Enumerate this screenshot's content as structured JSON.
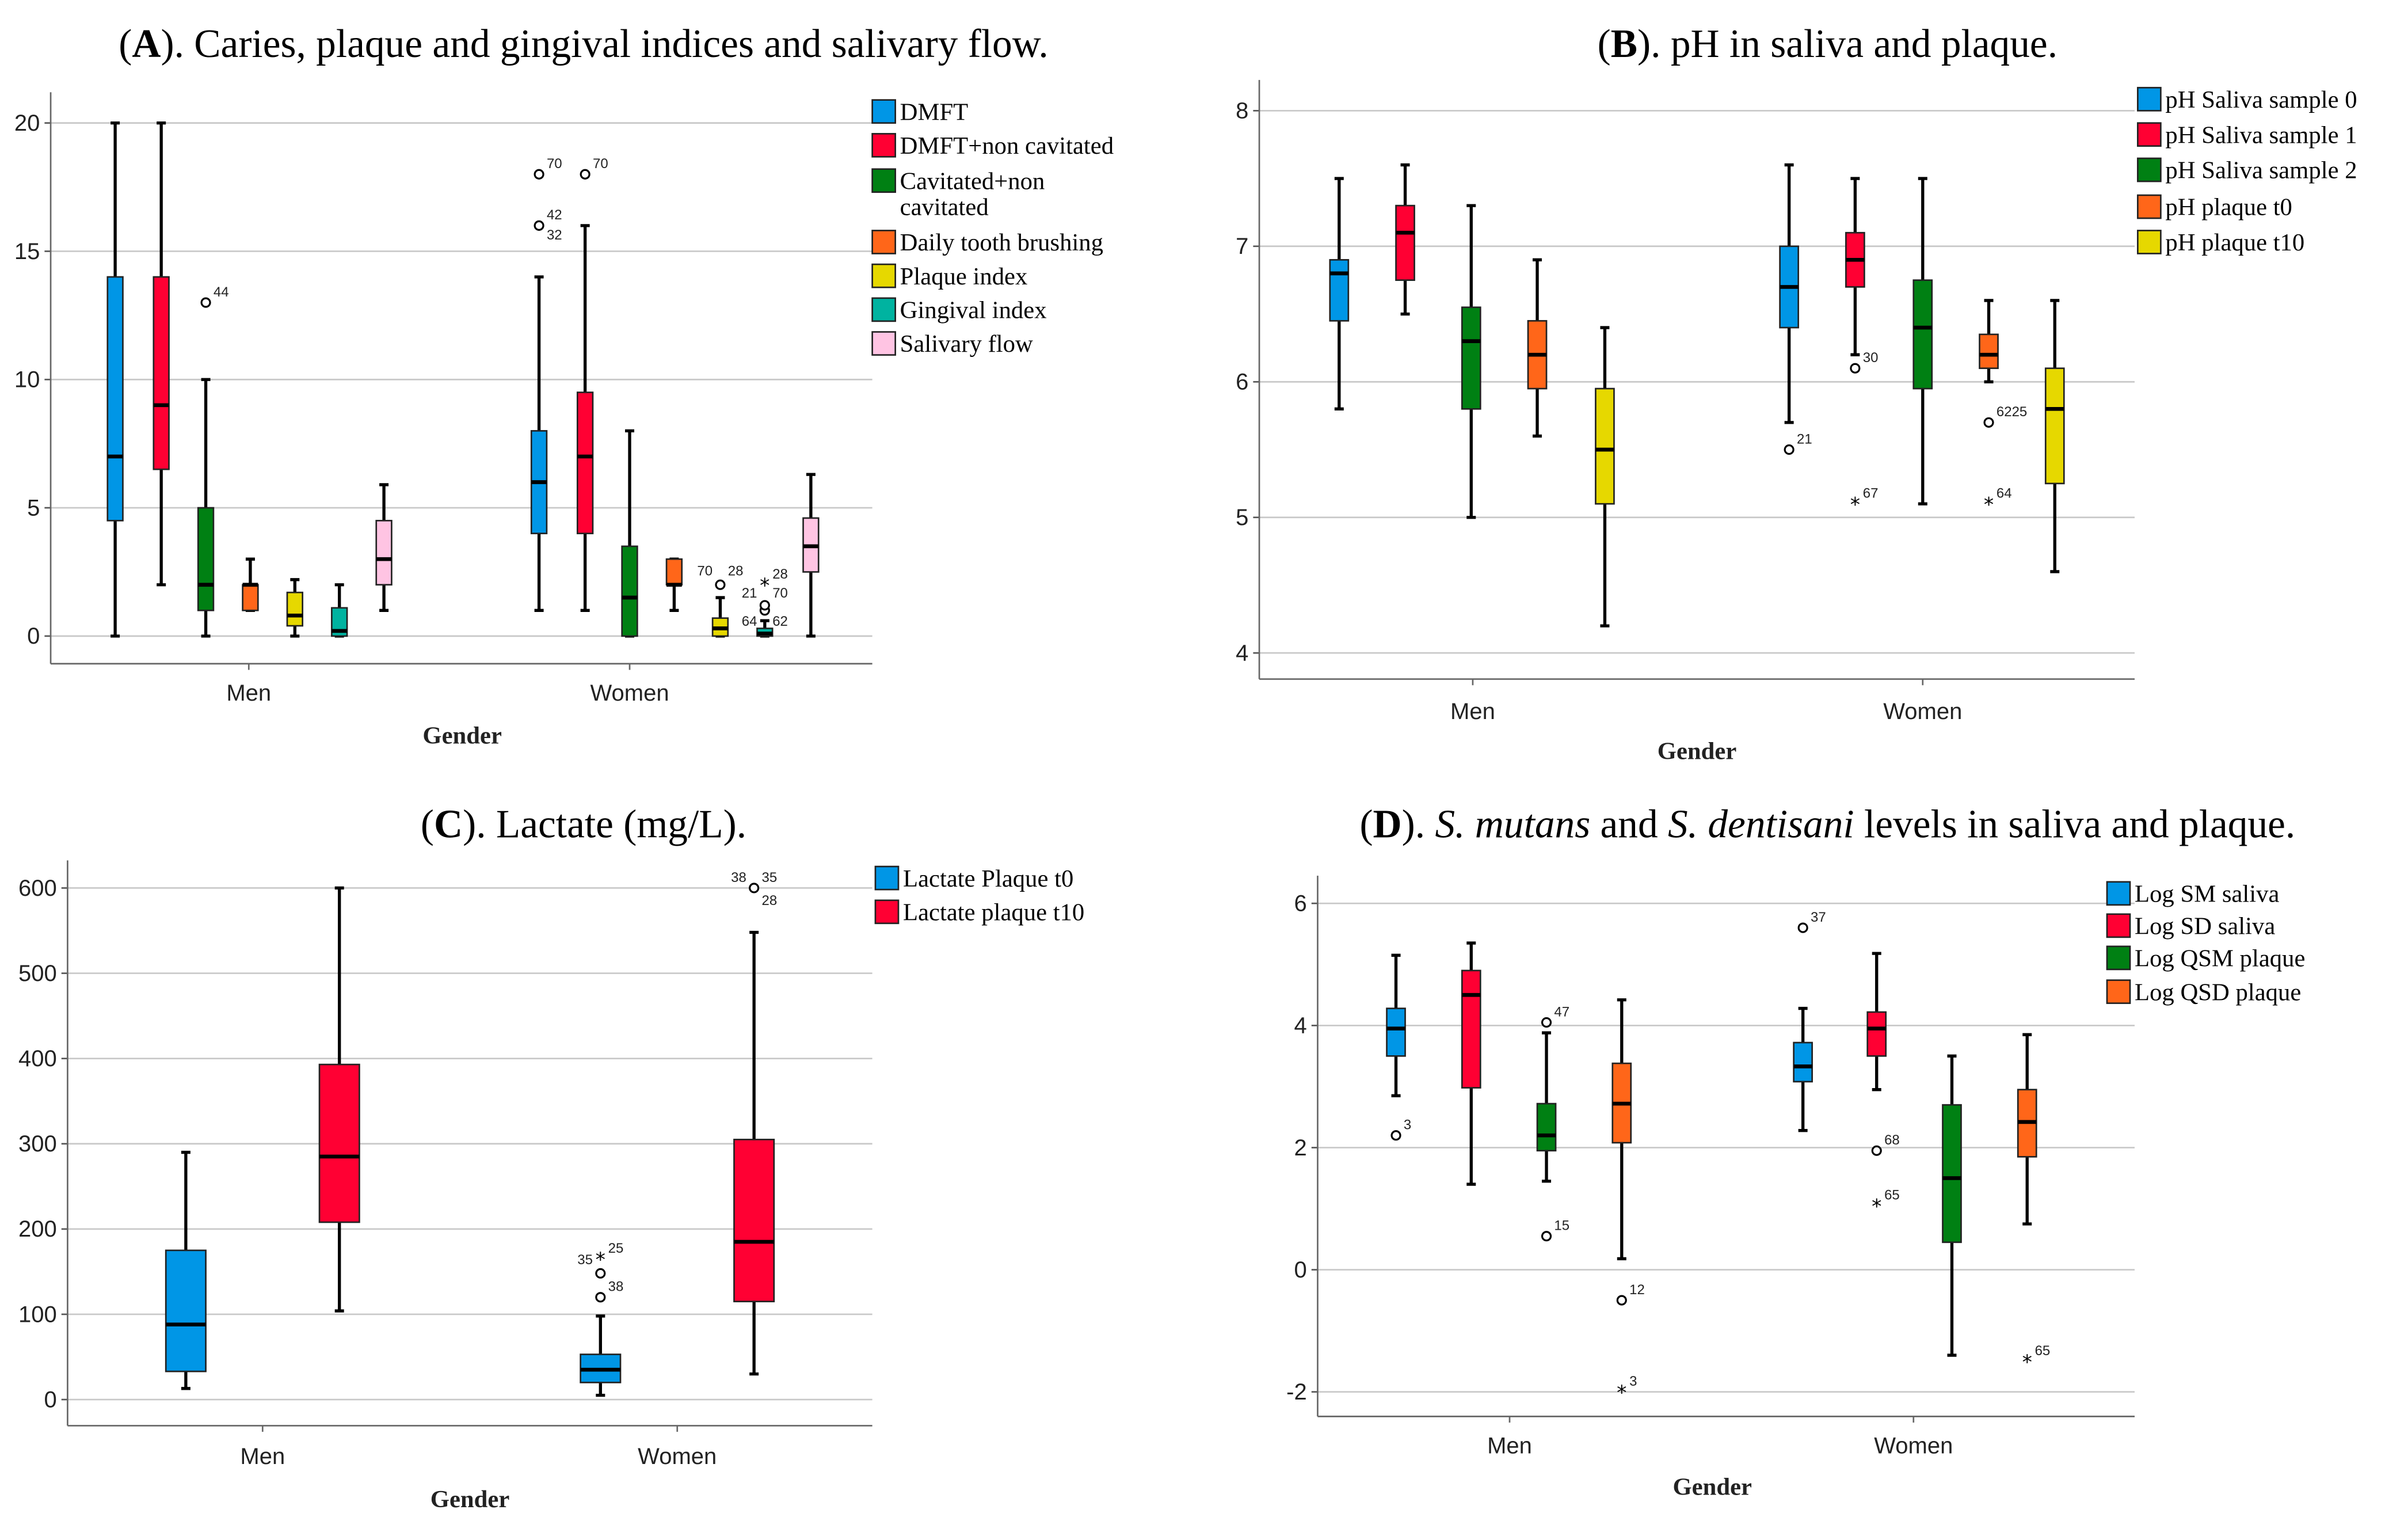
{
  "chart_data": [
    {
      "type": "box",
      "title_letter": "A",
      "title_rest": ". Caries, plaque and gingival indices and salivary flow.",
      "xlabel": "Gender",
      "categories": [
        "Men",
        "Women"
      ],
      "ylim": [
        0,
        20
      ],
      "yticks": [
        0,
        5,
        10,
        15,
        20
      ],
      "series": [
        {
          "name": "DMFT",
          "color": "#0096e6",
          "stats": [
            [
              0,
              4.5,
              7,
              14,
              20
            ],
            [
              1,
              4,
              6,
              8,
              14
            ]
          ],
          "outliers": [
            [],
            [
              {
                "v": 16,
                "labels": [
                  "42",
                  "32"
                ]
              },
              {
                "v": 18,
                "labels": [
                  "70"
                ]
              }
            ]
          ]
        },
        {
          "name": "DMFT+non cavitated",
          "color": "#ff0033",
          "stats": [
            [
              2,
              6.5,
              9,
              14,
              20
            ],
            [
              1,
              4,
              7,
              9.5,
              16
            ]
          ],
          "outliers": [
            [],
            [
              {
                "v": 18,
                "labels": [
                  "70"
                ]
              }
            ]
          ]
        },
        {
          "name": "Cavitated+non cavitated",
          "color": "#008013",
          "stats": [
            [
              0,
              1,
              2,
              5,
              10
            ],
            [
              0,
              0,
              1.5,
              3.5,
              8
            ]
          ],
          "outliers": [
            [
              {
                "v": 13,
                "labels": [
                  "44"
                ]
              }
            ],
            []
          ]
        },
        {
          "name": "Daily tooth brushing",
          "color": "#ff6619",
          "stats": [
            [
              1,
              1,
              2,
              2,
              3
            ],
            [
              1,
              2,
              2,
              3,
              3
            ]
          ],
          "outliers": [
            [],
            []
          ]
        },
        {
          "name": "Plaque index",
          "color": "#e6d800",
          "stats": [
            [
              0,
              0.4,
              0.8,
              1.7,
              2.2
            ],
            [
              0,
              0,
              0.3,
              0.7,
              1.5
            ]
          ],
          "outliers": [
            [],
            [
              {
                "v": 2,
                "labels": [
                  "70",
                  "28"
                ]
              }
            ]
          ]
        },
        {
          "name": "Gingival index",
          "color": "#00b3a0",
          "stats": [
            [
              0,
              0,
              0.2,
              1.1,
              2
            ],
            [
              0,
              0,
              0.1,
              0.3,
              0.6
            ]
          ],
          "outliers": [
            [],
            [
              {
                "v": 1.0,
                "labels": [
                  "64",
                  "62"
                ]
              },
              {
                "v": 1.2,
                "labels": [
                  "21",
                  "70"
                ]
              },
              {
                "v": 2,
                "extreme": true,
                "labels": [
                  "28"
                ]
              }
            ]
          ]
        },
        {
          "name": "Salivary flow",
          "color": "#ffc4e3",
          "stats": [
            [
              1,
              2,
              3,
              4.5,
              5.9
            ],
            [
              0,
              2.5,
              3.5,
              4.6,
              6.3
            ]
          ],
          "outliers": [
            [],
            []
          ]
        }
      ]
    },
    {
      "type": "box",
      "title_letter": "B",
      "title_rest": ". pH in saliva and plaque.",
      "xlabel": "Gender",
      "categories": [
        "Men",
        "Women"
      ],
      "ylim": [
        4,
        8
      ],
      "yticks": [
        4,
        5,
        6,
        7,
        8
      ],
      "series": [
        {
          "name": "pH Saliva sample 0",
          "color": "#0096e6",
          "stats": [
            [
              5.8,
              6.45,
              6.8,
              6.9,
              7.5
            ],
            [
              5.7,
              6.4,
              6.7,
              7.0,
              7.6
            ]
          ],
          "outliers": [
            [],
            [
              {
                "v": 5.5,
                "labels": [
                  "21"
                ]
              }
            ]
          ]
        },
        {
          "name": "pH Saliva sample 1",
          "color": "#ff0033",
          "stats": [
            [
              6.5,
              6.75,
              7.1,
              7.3,
              7.6
            ],
            [
              6.2,
              6.7,
              6.9,
              7.1,
              7.5
            ]
          ],
          "outliers": [
            [],
            [
              {
                "v": 6.1,
                "labels": [
                  "30"
                ]
              },
              {
                "v": 5.1,
                "extreme": true,
                "labels": [
                  "67"
                ]
              }
            ]
          ]
        },
        {
          "name": "pH Saliva sample 2",
          "color": "#008013",
          "stats": [
            [
              5.0,
              5.8,
              6.3,
              6.55,
              7.3
            ],
            [
              5.1,
              5.95,
              6.4,
              6.75,
              7.5
            ]
          ],
          "outliers": [
            [],
            []
          ]
        },
        {
          "name": "pH plaque t0",
          "color": "#ff6619",
          "stats": [
            [
              5.6,
              5.95,
              6.2,
              6.45,
              6.9
            ],
            [
              6.0,
              6.1,
              6.2,
              6.35,
              6.6
            ]
          ],
          "outliers": [
            [],
            [
              {
                "v": 5.7,
                "labels": [
                  "6225"
                ]
              },
              {
                "v": 5.1,
                "extreme": true,
                "labels": [
                  "64"
                ]
              }
            ]
          ]
        },
        {
          "name": "pH plaque t10",
          "color": "#e6d800",
          "stats": [
            [
              4.2,
              5.1,
              5.5,
              5.95,
              6.4
            ],
            [
              4.6,
              5.25,
              5.8,
              6.1,
              6.6
            ]
          ],
          "outliers": [
            [],
            []
          ]
        }
      ]
    },
    {
      "type": "box",
      "title_letter": "C",
      "title_rest": ". Lactate (mg/L).",
      "xlabel": "Gender",
      "categories": [
        "Men",
        "Women"
      ],
      "ylim": [
        0,
        600
      ],
      "yticks": [
        0,
        100,
        200,
        300,
        400,
        500,
        600
      ],
      "series": [
        {
          "name": "Lactate Plaque  t0",
          "color": "#0096e6",
          "stats": [
            [
              13,
              33,
              88,
              175,
              290
            ],
            [
              5,
              20,
              35,
              53,
              98
            ]
          ],
          "outliers": [
            [],
            [
              {
                "v": 120,
                "labels": [
                  "38"
                ]
              },
              {
                "v": 148,
                "labels": [
                  "35"
                ]
              },
              {
                "v": 165,
                "extreme": true,
                "labels": [
                  "25"
                ]
              }
            ]
          ]
        },
        {
          "name": "Lactate plaque t10",
          "color": "#ff0033",
          "stats": [
            [
              104,
              208,
              285,
              393,
              600
            ],
            [
              30,
              115,
              185,
              305,
              548
            ]
          ],
          "outliers": [
            [],
            [
              {
                "v": 600,
                "labels": [
                  "38",
                  "35",
                  "28"
                ]
              }
            ]
          ]
        }
      ]
    },
    {
      "type": "box",
      "title_letter": "D",
      "title_pre": ". ",
      "title_it1": "S. mutans",
      "title_mid": " and ",
      "title_it2": "S. dentisani",
      "title_post": " levels in saliva and plaque.",
      "xlabel": "Gender",
      "categories": [
        "Men",
        "Women"
      ],
      "ylim": [
        -2,
        6
      ],
      "yticks": [
        -2,
        0,
        2,
        4,
        6
      ],
      "series": [
        {
          "name": "Log SM saliva",
          "color": "#0096e6",
          "stats": [
            [
              2.85,
              3.5,
              3.95,
              4.28,
              5.15
            ],
            [
              2.28,
              3.08,
              3.33,
              3.72,
              4.28
            ]
          ],
          "outliers": [
            [
              {
                "v": 2.2,
                "labels": [
                  "3"
                ]
              }
            ],
            [
              {
                "v": 5.6,
                "labels": [
                  "37"
                ]
              }
            ]
          ]
        },
        {
          "name": "Log SD saliva",
          "color": "#ff0033",
          "stats": [
            [
              1.4,
              2.98,
              4.5,
              4.9,
              5.35
            ],
            [
              2.95,
              3.5,
              3.95,
              4.22,
              5.18
            ]
          ],
          "outliers": [
            [],
            [
              {
                "v": 1.95,
                "labels": [
                  "68"
                ]
              },
              {
                "v": 1.05,
                "extreme": true,
                "labels": [
                  "65"
                ]
              }
            ]
          ]
        },
        {
          "name": "Log QSM plaque",
          "color": "#008013",
          "stats": [
            [
              1.45,
              1.95,
              2.2,
              2.72,
              3.88
            ],
            [
              -1.4,
              0.45,
              1.5,
              2.7,
              3.5
            ]
          ],
          "outliers": [
            [
              {
                "v": 4.05,
                "labels": [
                  "47"
                ]
              },
              {
                "v": 0.55,
                "labels": [
                  "15"
                ]
              }
            ],
            []
          ]
        },
        {
          "name": "Log QSD plaque",
          "color": "#ff6619",
          "stats": [
            [
              0.18,
              2.08,
              2.72,
              3.38,
              4.42
            ],
            [
              0.75,
              1.85,
              2.42,
              2.95,
              3.85
            ]
          ],
          "outliers": [
            [
              {
                "v": -0.5,
                "labels": [
                  "12"
                ]
              },
              {
                "v": -2,
                "extreme": true,
                "labels": [
                  "3"
                ]
              }
            ],
            [
              {
                "v": -1.5,
                "extreme": true,
                "labels": [
                  "65"
                ]
              }
            ]
          ]
        }
      ]
    }
  ]
}
